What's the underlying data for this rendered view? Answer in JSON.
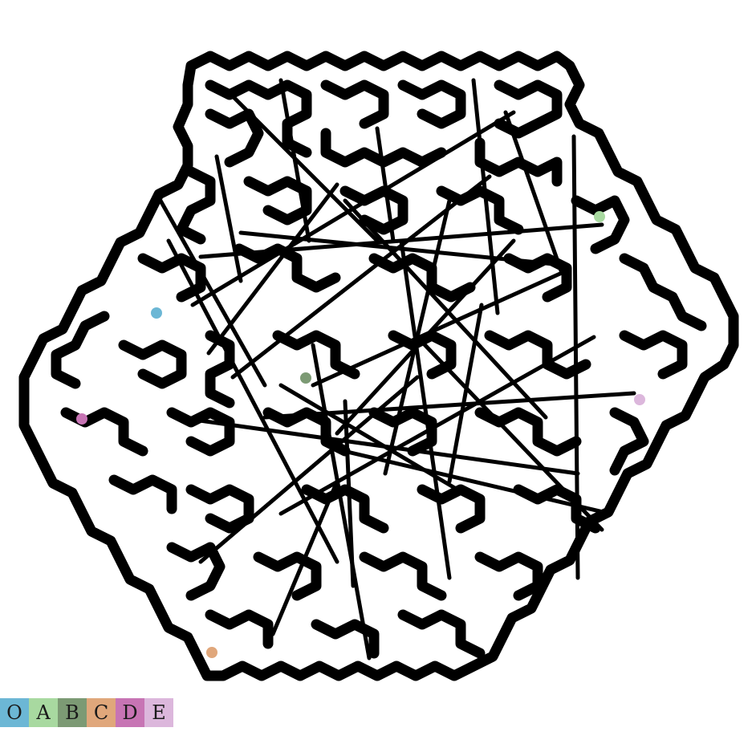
{
  "puzzle": {
    "legend": [
      {
        "label": "O",
        "color": "#6cb7d5"
      },
      {
        "label": "A",
        "color": "#a8d9a0"
      },
      {
        "label": "B",
        "color": "#7c9a74"
      },
      {
        "label": "C",
        "color": "#e0a77b"
      },
      {
        "label": "D",
        "color": "#c774b4"
      },
      {
        "label": "E",
        "color": "#dcb7dc"
      }
    ],
    "markers": [
      {
        "label": "O",
        "color": "#6cb7d5"
      },
      {
        "label": "A",
        "color": "#a8d9a0"
      },
      {
        "label": "B",
        "color": "#7c9a74"
      },
      {
        "label": "C",
        "color": "#e0a77b"
      },
      {
        "label": "D",
        "color": "#c774b4"
      },
      {
        "label": "E",
        "color": "#dcb7dc"
      }
    ]
  }
}
